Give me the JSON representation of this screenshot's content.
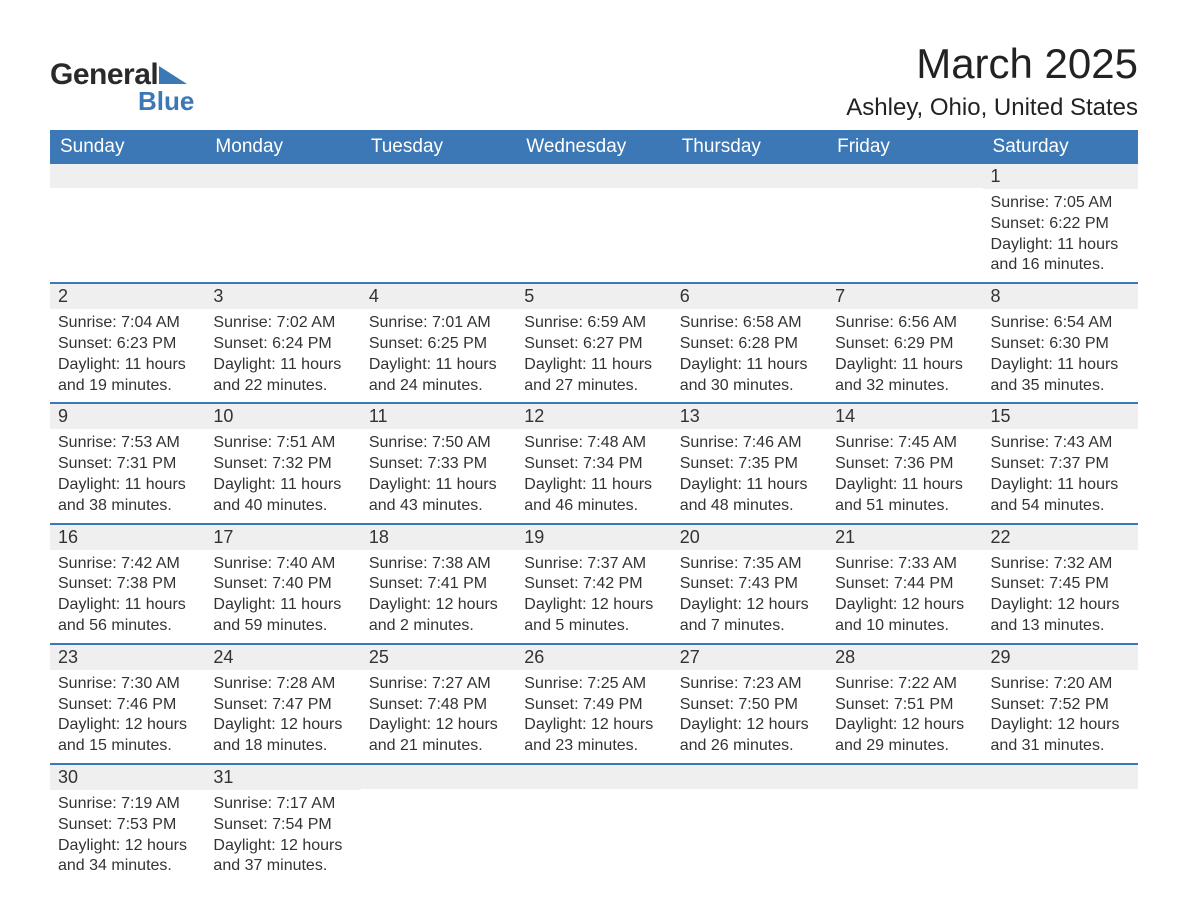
{
  "brand": {
    "word1": "General",
    "word2": "Blue",
    "accent_color": "#3b78b5"
  },
  "title": {
    "month": "March 2025",
    "location": "Ashley, Ohio, United States"
  },
  "colors": {
    "header_bg": "#3b78b5",
    "header_text": "#ffffff",
    "daynum_bg": "#efefef",
    "row_border": "#3b78b5",
    "body_text": "#333333",
    "page_bg": "#ffffff"
  },
  "typography": {
    "title_month_pt": 42,
    "title_loc_pt": 24,
    "header_pt": 19,
    "daynum_pt": 18,
    "body_pt": 16
  },
  "layout": {
    "columns": 7,
    "rows": 6,
    "first_day_column_index": 6
  },
  "calendar": {
    "day_headers": [
      "Sunday",
      "Monday",
      "Tuesday",
      "Wednesday",
      "Thursday",
      "Friday",
      "Saturday"
    ],
    "weeks": [
      [
        null,
        null,
        null,
        null,
        null,
        null,
        {
          "day": "1",
          "sunrise": "Sunrise: 7:05 AM",
          "sunset": "Sunset: 6:22 PM",
          "daylight1": "Daylight: 11 hours",
          "daylight2": "and 16 minutes."
        }
      ],
      [
        {
          "day": "2",
          "sunrise": "Sunrise: 7:04 AM",
          "sunset": "Sunset: 6:23 PM",
          "daylight1": "Daylight: 11 hours",
          "daylight2": "and 19 minutes."
        },
        {
          "day": "3",
          "sunrise": "Sunrise: 7:02 AM",
          "sunset": "Sunset: 6:24 PM",
          "daylight1": "Daylight: 11 hours",
          "daylight2": "and 22 minutes."
        },
        {
          "day": "4",
          "sunrise": "Sunrise: 7:01 AM",
          "sunset": "Sunset: 6:25 PM",
          "daylight1": "Daylight: 11 hours",
          "daylight2": "and 24 minutes."
        },
        {
          "day": "5",
          "sunrise": "Sunrise: 6:59 AM",
          "sunset": "Sunset: 6:27 PM",
          "daylight1": "Daylight: 11 hours",
          "daylight2": "and 27 minutes."
        },
        {
          "day": "6",
          "sunrise": "Sunrise: 6:58 AM",
          "sunset": "Sunset: 6:28 PM",
          "daylight1": "Daylight: 11 hours",
          "daylight2": "and 30 minutes."
        },
        {
          "day": "7",
          "sunrise": "Sunrise: 6:56 AM",
          "sunset": "Sunset: 6:29 PM",
          "daylight1": "Daylight: 11 hours",
          "daylight2": "and 32 minutes."
        },
        {
          "day": "8",
          "sunrise": "Sunrise: 6:54 AM",
          "sunset": "Sunset: 6:30 PM",
          "daylight1": "Daylight: 11 hours",
          "daylight2": "and 35 minutes."
        }
      ],
      [
        {
          "day": "9",
          "sunrise": "Sunrise: 7:53 AM",
          "sunset": "Sunset: 7:31 PM",
          "daylight1": "Daylight: 11 hours",
          "daylight2": "and 38 minutes."
        },
        {
          "day": "10",
          "sunrise": "Sunrise: 7:51 AM",
          "sunset": "Sunset: 7:32 PM",
          "daylight1": "Daylight: 11 hours",
          "daylight2": "and 40 minutes."
        },
        {
          "day": "11",
          "sunrise": "Sunrise: 7:50 AM",
          "sunset": "Sunset: 7:33 PM",
          "daylight1": "Daylight: 11 hours",
          "daylight2": "and 43 minutes."
        },
        {
          "day": "12",
          "sunrise": "Sunrise: 7:48 AM",
          "sunset": "Sunset: 7:34 PM",
          "daylight1": "Daylight: 11 hours",
          "daylight2": "and 46 minutes."
        },
        {
          "day": "13",
          "sunrise": "Sunrise: 7:46 AM",
          "sunset": "Sunset: 7:35 PM",
          "daylight1": "Daylight: 11 hours",
          "daylight2": "and 48 minutes."
        },
        {
          "day": "14",
          "sunrise": "Sunrise: 7:45 AM",
          "sunset": "Sunset: 7:36 PM",
          "daylight1": "Daylight: 11 hours",
          "daylight2": "and 51 minutes."
        },
        {
          "day": "15",
          "sunrise": "Sunrise: 7:43 AM",
          "sunset": "Sunset: 7:37 PM",
          "daylight1": "Daylight: 11 hours",
          "daylight2": "and 54 minutes."
        }
      ],
      [
        {
          "day": "16",
          "sunrise": "Sunrise: 7:42 AM",
          "sunset": "Sunset: 7:38 PM",
          "daylight1": "Daylight: 11 hours",
          "daylight2": "and 56 minutes."
        },
        {
          "day": "17",
          "sunrise": "Sunrise: 7:40 AM",
          "sunset": "Sunset: 7:40 PM",
          "daylight1": "Daylight: 11 hours",
          "daylight2": "and 59 minutes."
        },
        {
          "day": "18",
          "sunrise": "Sunrise: 7:38 AM",
          "sunset": "Sunset: 7:41 PM",
          "daylight1": "Daylight: 12 hours",
          "daylight2": "and 2 minutes."
        },
        {
          "day": "19",
          "sunrise": "Sunrise: 7:37 AM",
          "sunset": "Sunset: 7:42 PM",
          "daylight1": "Daylight: 12 hours",
          "daylight2": "and 5 minutes."
        },
        {
          "day": "20",
          "sunrise": "Sunrise: 7:35 AM",
          "sunset": "Sunset: 7:43 PM",
          "daylight1": "Daylight: 12 hours",
          "daylight2": "and 7 minutes."
        },
        {
          "day": "21",
          "sunrise": "Sunrise: 7:33 AM",
          "sunset": "Sunset: 7:44 PM",
          "daylight1": "Daylight: 12 hours",
          "daylight2": "and 10 minutes."
        },
        {
          "day": "22",
          "sunrise": "Sunrise: 7:32 AM",
          "sunset": "Sunset: 7:45 PM",
          "daylight1": "Daylight: 12 hours",
          "daylight2": "and 13 minutes."
        }
      ],
      [
        {
          "day": "23",
          "sunrise": "Sunrise: 7:30 AM",
          "sunset": "Sunset: 7:46 PM",
          "daylight1": "Daylight: 12 hours",
          "daylight2": "and 15 minutes."
        },
        {
          "day": "24",
          "sunrise": "Sunrise: 7:28 AM",
          "sunset": "Sunset: 7:47 PM",
          "daylight1": "Daylight: 12 hours",
          "daylight2": "and 18 minutes."
        },
        {
          "day": "25",
          "sunrise": "Sunrise: 7:27 AM",
          "sunset": "Sunset: 7:48 PM",
          "daylight1": "Daylight: 12 hours",
          "daylight2": "and 21 minutes."
        },
        {
          "day": "26",
          "sunrise": "Sunrise: 7:25 AM",
          "sunset": "Sunset: 7:49 PM",
          "daylight1": "Daylight: 12 hours",
          "daylight2": "and 23 minutes."
        },
        {
          "day": "27",
          "sunrise": "Sunrise: 7:23 AM",
          "sunset": "Sunset: 7:50 PM",
          "daylight1": "Daylight: 12 hours",
          "daylight2": "and 26 minutes."
        },
        {
          "day": "28",
          "sunrise": "Sunrise: 7:22 AM",
          "sunset": "Sunset: 7:51 PM",
          "daylight1": "Daylight: 12 hours",
          "daylight2": "and 29 minutes."
        },
        {
          "day": "29",
          "sunrise": "Sunrise: 7:20 AM",
          "sunset": "Sunset: 7:52 PM",
          "daylight1": "Daylight: 12 hours",
          "daylight2": "and 31 minutes."
        }
      ],
      [
        {
          "day": "30",
          "sunrise": "Sunrise: 7:19 AM",
          "sunset": "Sunset: 7:53 PM",
          "daylight1": "Daylight: 12 hours",
          "daylight2": "and 34 minutes."
        },
        {
          "day": "31",
          "sunrise": "Sunrise: 7:17 AM",
          "sunset": "Sunset: 7:54 PM",
          "daylight1": "Daylight: 12 hours",
          "daylight2": "and 37 minutes."
        },
        null,
        null,
        null,
        null,
        null
      ]
    ]
  }
}
